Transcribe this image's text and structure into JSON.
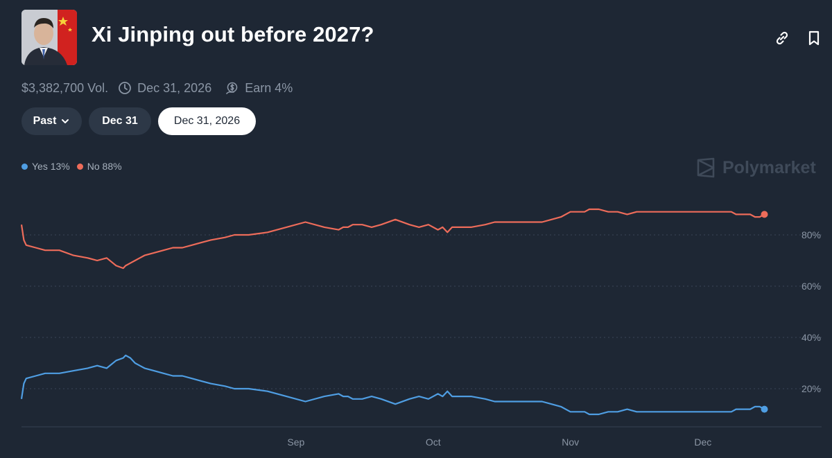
{
  "market": {
    "title": "Xi Jinping out before 2027?",
    "avatar_icon": "portrait-with-flag",
    "volume": "$3,382,700 Vol.",
    "end_date": "Dec 31, 2026",
    "earn": "Earn 4%"
  },
  "filters": {
    "past_label": "Past",
    "dec31_label": "Dec 31",
    "active_label": "Dec 31, 2026"
  },
  "legend": {
    "yes_label": "Yes 13%",
    "no_label": "No 88%"
  },
  "brand": {
    "name": "Polymarket"
  },
  "colors": {
    "yes": "#4f9ee3",
    "no": "#ee6c5a",
    "background": "#1e2734"
  },
  "chart_data": {
    "type": "line",
    "x_tick_labels": [
      "Sep",
      "Oct",
      "Nov",
      "Dec"
    ],
    "x_ticks": [
      52,
      81,
      110,
      138
    ],
    "x_range": [
      -6,
      154
    ],
    "y_ticks": [
      20,
      40,
      60,
      80
    ],
    "y_tick_labels": [
      "20%",
      "40%",
      "60%",
      "80%"
    ],
    "ylim": [
      0,
      100
    ],
    "y_axis_side": "right",
    "grid": "horizontal-dotted",
    "legend_position": "top-left",
    "series": [
      {
        "name": "Yes",
        "color": "#4f9ee3",
        "x": [
          -6,
          -5.5,
          -5,
          -3,
          -1,
          2,
          5,
          8,
          10,
          12,
          14,
          15.5,
          16,
          17,
          18,
          19,
          20,
          22,
          24,
          26,
          28,
          30,
          32,
          34,
          37,
          39,
          42,
          46,
          50,
          54,
          58,
          61,
          62,
          63,
          64,
          66,
          68,
          70,
          73,
          76,
          78,
          80,
          82,
          83,
          84,
          85,
          87,
          89,
          92,
          94,
          96,
          97,
          98,
          100,
          102,
          104,
          106,
          108,
          110,
          112,
          113,
          114,
          115,
          116,
          118,
          120,
          122,
          124,
          128,
          132,
          136,
          140,
          141,
          142,
          143,
          144,
          145,
          146,
          147,
          148,
          149,
          150,
          151
        ],
        "y": [
          16,
          22,
          24,
          25,
          26,
          26,
          27,
          28,
          29,
          28,
          31,
          32,
          33,
          32,
          30,
          29,
          28,
          27,
          26,
          25,
          25,
          24,
          23,
          22,
          21,
          20,
          20,
          19,
          17,
          15,
          17,
          18,
          17,
          17,
          16,
          16,
          17,
          16,
          14,
          16,
          17,
          16,
          18,
          17,
          19,
          17,
          17,
          17,
          16,
          15,
          15,
          15,
          15,
          15,
          15,
          15,
          14,
          13,
          11,
          11,
          11,
          10,
          10,
          10,
          11,
          11,
          12,
          11,
          11,
          11,
          11,
          11,
          11,
          11,
          11,
          11,
          12,
          12,
          12,
          12,
          13,
          13,
          12
        ]
      },
      {
        "name": "No",
        "color": "#ee6c5a",
        "x": [
          -6,
          -5.5,
          -5,
          -3,
          -1,
          2,
          5,
          8,
          10,
          12,
          14,
          15.5,
          16,
          17,
          18,
          19,
          20,
          22,
          24,
          26,
          28,
          30,
          32,
          34,
          37,
          39,
          42,
          46,
          50,
          54,
          58,
          61,
          62,
          63,
          64,
          66,
          68,
          70,
          73,
          76,
          78,
          80,
          82,
          83,
          84,
          85,
          87,
          89,
          92,
          94,
          96,
          97,
          98,
          100,
          102,
          104,
          106,
          108,
          110,
          112,
          113,
          114,
          115,
          116,
          118,
          120,
          122,
          124,
          128,
          132,
          136,
          140,
          141,
          142,
          143,
          144,
          145,
          146,
          147,
          148,
          149,
          150,
          151
        ],
        "y": [
          84,
          78,
          76,
          75,
          74,
          74,
          72,
          71,
          70,
          71,
          68,
          67,
          68,
          69,
          70,
          71,
          72,
          73,
          74,
          75,
          75,
          76,
          77,
          78,
          79,
          80,
          80,
          81,
          83,
          85,
          83,
          82,
          83,
          83,
          84,
          84,
          83,
          84,
          86,
          84,
          83,
          84,
          82,
          83,
          81,
          83,
          83,
          83,
          84,
          85,
          85,
          85,
          85,
          85,
          85,
          85,
          86,
          87,
          89,
          89,
          89,
          90,
          90,
          90,
          89,
          89,
          88,
          89,
          89,
          89,
          89,
          89,
          89,
          89,
          89,
          89,
          88,
          88,
          88,
          88,
          87,
          87,
          88
        ]
      }
    ]
  }
}
